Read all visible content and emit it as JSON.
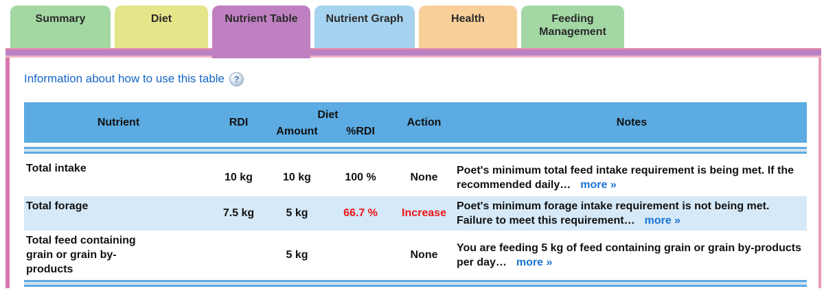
{
  "tabs": [
    {
      "id": "summary",
      "label": "Summary",
      "color": "#a3d8a3",
      "active": false
    },
    {
      "id": "diet",
      "label": "Diet",
      "color": "#e5e58a",
      "active": false
    },
    {
      "id": "nutrient-table",
      "label": "Nutrient Table",
      "color": "#bf80c2",
      "active": true
    },
    {
      "id": "nutrient-graph",
      "label": "Nutrient Graph",
      "color": "#a6d3ef",
      "active": false
    },
    {
      "id": "health",
      "label": "Health",
      "color": "#f8cf99",
      "active": false
    },
    {
      "id": "feeding-management",
      "label": "Feeding Management",
      "color": "#a3d8a5",
      "active": false
    }
  ],
  "info_link": {
    "label": "Information about how to use this table",
    "help_icon_glyph": "?"
  },
  "table": {
    "headers": {
      "nutrient": "Nutrient",
      "rdi": "RDI",
      "diet_group": "Diet",
      "amount": "Amount",
      "percent_rdi": "%RDI",
      "action": "Action",
      "notes": "Notes"
    },
    "rows": [
      {
        "nutrient": "Total intake",
        "rdi": "10 kg",
        "amount": "10 kg",
        "percent_rdi": "100 %",
        "percent_alert": false,
        "action": "None",
        "action_alert": false,
        "notes": "Poet's minimum total feed intake requirement is being met. If the recommended daily…",
        "more_label": "more »"
      },
      {
        "nutrient": "Total forage",
        "rdi": "7.5 kg",
        "amount": "5 kg",
        "percent_rdi": "66.7 %",
        "percent_alert": true,
        "action": "Increase",
        "action_alert": true,
        "notes": "Poet's minimum forage intake requirement is not being met. Failure to meet this requirement…",
        "more_label": "more »"
      },
      {
        "nutrient": "Total feed containing grain or grain by-products",
        "rdi": "",
        "amount": "5 kg",
        "percent_rdi": "",
        "percent_alert": false,
        "action": "None",
        "action_alert": false,
        "notes": "You are feeding 5 kg of feed containing grain or grain by-products per day…",
        "more_label": "more »"
      }
    ]
  },
  "colors": {
    "header_blue": "#5cabe2",
    "row_alt_blue": "#d6e9f8",
    "separator_blue": "#5fa9e0",
    "panel_border_pink": "#d678ad",
    "panel_border_purple": "#bc82c4",
    "link_blue": "#1566c4",
    "alert_red": "#ef1515"
  }
}
